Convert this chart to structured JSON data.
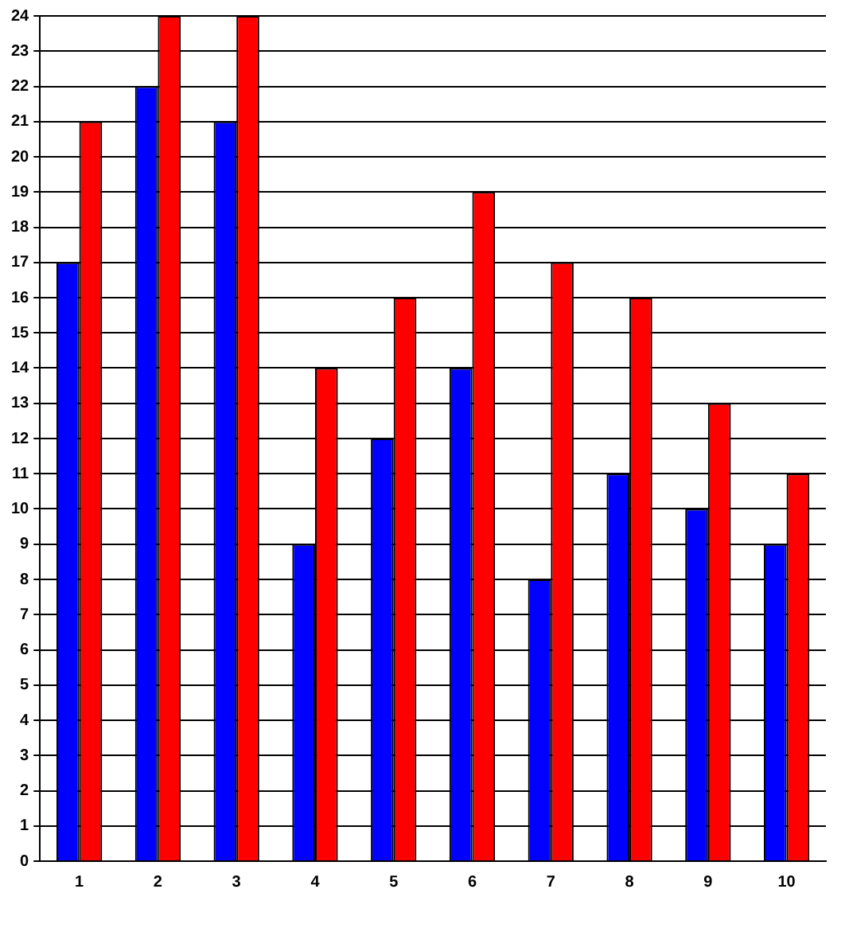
{
  "chart_data": {
    "type": "bar",
    "categories": [
      "1",
      "2",
      "3",
      "4",
      "5",
      "6",
      "7",
      "8",
      "9",
      "10"
    ],
    "series": [
      {
        "color": "#0000ff",
        "values": [
          17,
          22,
          21,
          9,
          12,
          14,
          8,
          11,
          10,
          9
        ]
      },
      {
        "color": "#ff0000",
        "values": [
          21,
          24,
          24,
          14,
          16,
          19,
          17,
          16,
          13,
          11
        ]
      }
    ],
    "ylim": [
      0,
      24
    ],
    "yticks": [
      0,
      1,
      2,
      3,
      4,
      5,
      6,
      7,
      8,
      9,
      10,
      11,
      12,
      13,
      14,
      15,
      16,
      17,
      18,
      19,
      20,
      21,
      22,
      23,
      24
    ],
    "grid": "y",
    "legend": false
  }
}
